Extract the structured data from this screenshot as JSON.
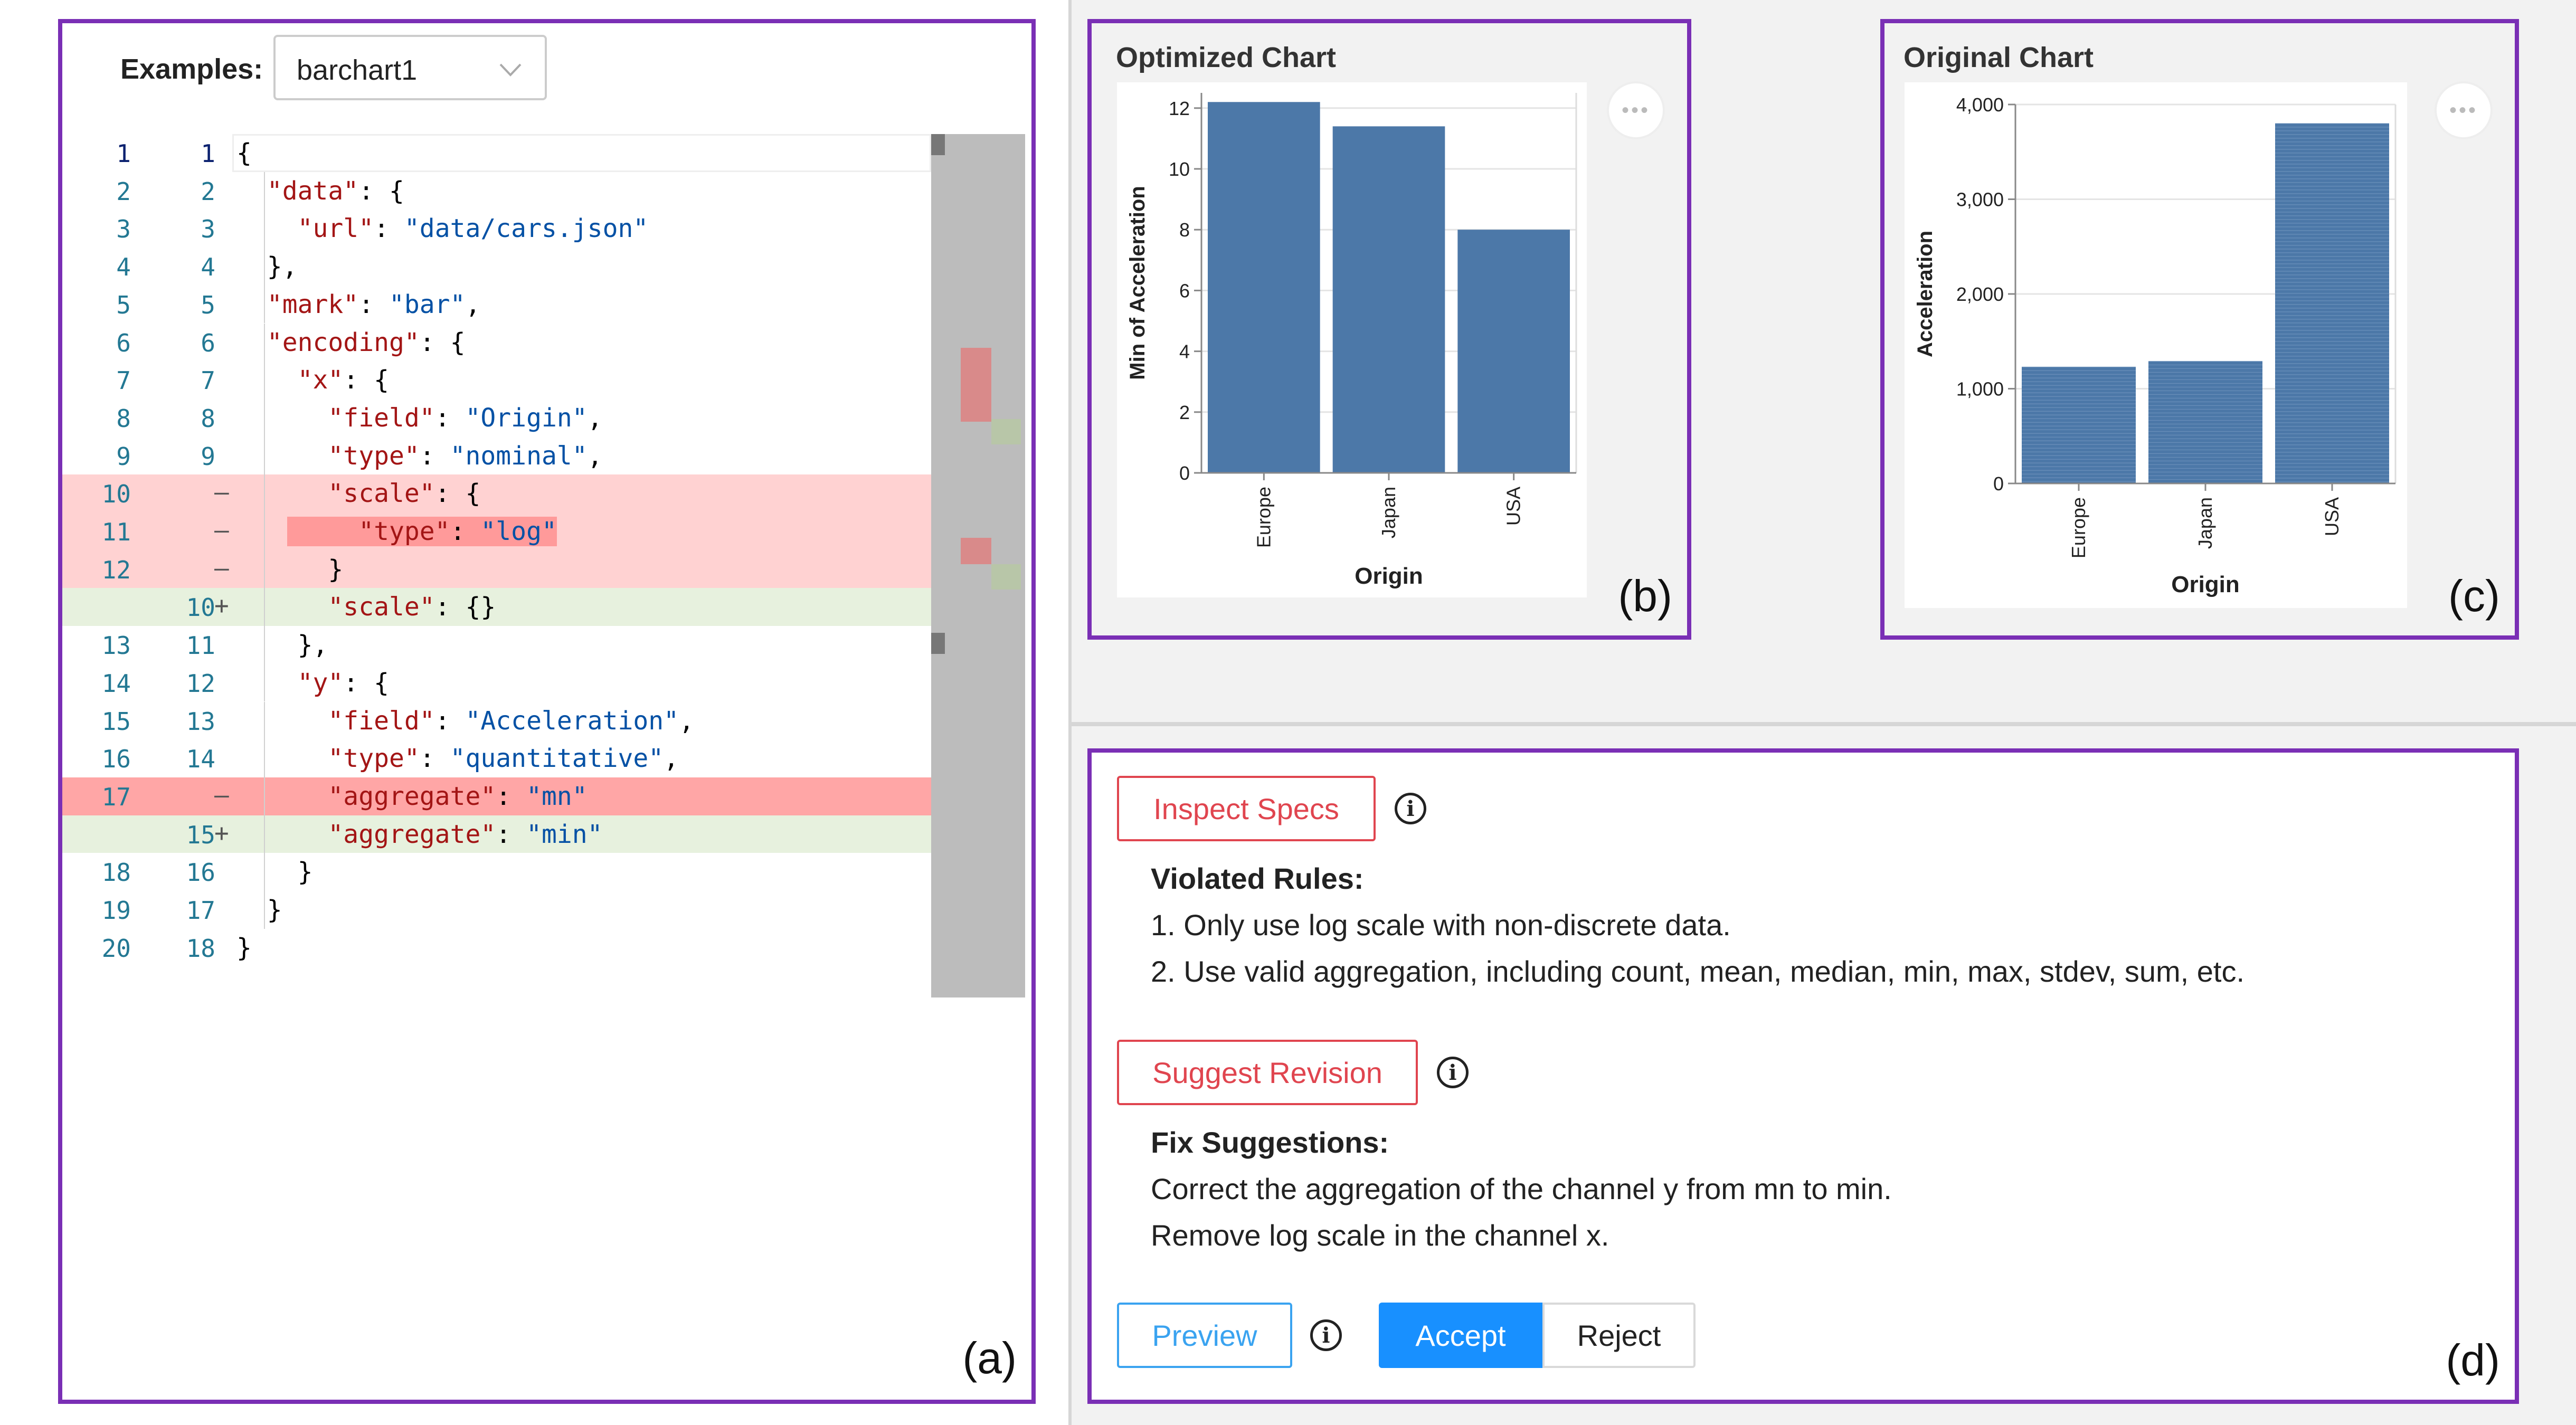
{
  "editor": {
    "examples_label": "Examples:",
    "examples_value": "barchart1",
    "panel_tag": "(a)",
    "lines": [
      {
        "l": "1",
        "r": "1",
        "diff": "",
        "tokens": [
          {
            "c": "punct",
            "t": "{"
          }
        ]
      },
      {
        "l": "2",
        "r": "2",
        "diff": "",
        "tokens": [
          {
            "c": "key",
            "t": "  \"data\""
          },
          {
            "c": "punct",
            "t": ": {"
          }
        ]
      },
      {
        "l": "3",
        "r": "3",
        "diff": "",
        "tokens": [
          {
            "c": "key",
            "t": "    \"url\""
          },
          {
            "c": "punct",
            "t": ": "
          },
          {
            "c": "str",
            "t": "\"data/cars.json\""
          }
        ]
      },
      {
        "l": "4",
        "r": "4",
        "diff": "",
        "tokens": [
          {
            "c": "punct",
            "t": "  },"
          }
        ]
      },
      {
        "l": "5",
        "r": "5",
        "diff": "",
        "tokens": [
          {
            "c": "key",
            "t": "  \"mark\""
          },
          {
            "c": "punct",
            "t": ": "
          },
          {
            "c": "str",
            "t": "\"bar\""
          },
          {
            "c": "punct",
            "t": ","
          }
        ]
      },
      {
        "l": "6",
        "r": "6",
        "diff": "",
        "tokens": [
          {
            "c": "key",
            "t": "  \"encoding\""
          },
          {
            "c": "punct",
            "t": ": {"
          }
        ]
      },
      {
        "l": "7",
        "r": "7",
        "diff": "",
        "tokens": [
          {
            "c": "key",
            "t": "    \"x\""
          },
          {
            "c": "punct",
            "t": ": {"
          }
        ]
      },
      {
        "l": "8",
        "r": "8",
        "diff": "",
        "tokens": [
          {
            "c": "key",
            "t": "      \"field\""
          },
          {
            "c": "punct",
            "t": ": "
          },
          {
            "c": "str",
            "t": "\"Origin\""
          },
          {
            "c": "punct",
            "t": ","
          }
        ]
      },
      {
        "l": "9",
        "r": "9",
        "diff": "",
        "tokens": [
          {
            "c": "key",
            "t": "      \"type\""
          },
          {
            "c": "punct",
            "t": ": "
          },
          {
            "c": "str",
            "t": "\"nominal\""
          },
          {
            "c": "punct",
            "t": ","
          }
        ]
      },
      {
        "l": "10",
        "r": "",
        "diff": "del",
        "tokens": [
          {
            "c": "key",
            "t": "      \"scale\""
          },
          {
            "c": "punct",
            "t": ": {"
          }
        ]
      },
      {
        "l": "11",
        "r": "",
        "diff": "del",
        "tokens": [
          {
            "c": "key",
            "t": "        \"type\""
          },
          {
            "c": "punct",
            "t": ": "
          },
          {
            "c": "str",
            "t": "\"log\""
          }
        ]
      },
      {
        "l": "12",
        "r": "",
        "diff": "del",
        "tokens": [
          {
            "c": "punct",
            "t": "      }"
          }
        ]
      },
      {
        "l": "",
        "r": "10",
        "diff": "add",
        "tokens": [
          {
            "c": "key",
            "t": "      \"scale\""
          },
          {
            "c": "punct",
            "t": ": {}"
          }
        ]
      },
      {
        "l": "13",
        "r": "11",
        "diff": "",
        "tokens": [
          {
            "c": "punct",
            "t": "    },"
          }
        ]
      },
      {
        "l": "14",
        "r": "12",
        "diff": "",
        "tokens": [
          {
            "c": "key",
            "t": "    \"y\""
          },
          {
            "c": "punct",
            "t": ": {"
          }
        ]
      },
      {
        "l": "15",
        "r": "13",
        "diff": "",
        "tokens": [
          {
            "c": "key",
            "t": "      \"field\""
          },
          {
            "c": "punct",
            "t": ": "
          },
          {
            "c": "str",
            "t": "\"Acceleration\""
          },
          {
            "c": "punct",
            "t": ","
          }
        ]
      },
      {
        "l": "16",
        "r": "14",
        "diff": "",
        "tokens": [
          {
            "c": "key",
            "t": "      \"type\""
          },
          {
            "c": "punct",
            "t": ": "
          },
          {
            "c": "str",
            "t": "\"quantitative\""
          },
          {
            "c": "punct",
            "t": ","
          }
        ]
      },
      {
        "l": "17",
        "r": "",
        "diff": "del2",
        "tokens": [
          {
            "c": "key",
            "t": "      \"aggregate\""
          },
          {
            "c": "punct",
            "t": ": "
          },
          {
            "c": "str",
            "t": "\"mn\""
          }
        ]
      },
      {
        "l": "",
        "r": "15",
        "diff": "add",
        "tokens": [
          {
            "c": "key",
            "t": "      \"aggregate\""
          },
          {
            "c": "punct",
            "t": ": "
          },
          {
            "c": "str",
            "t": "\"min\""
          }
        ]
      },
      {
        "l": "18",
        "r": "16",
        "diff": "",
        "tokens": [
          {
            "c": "punct",
            "t": "    }"
          }
        ]
      },
      {
        "l": "19",
        "r": "17",
        "diff": "",
        "tokens": [
          {
            "c": "punct",
            "t": "  }"
          }
        ]
      },
      {
        "l": "20",
        "r": "18",
        "diff": "",
        "tokens": [
          {
            "c": "punct",
            "t": "}"
          }
        ]
      }
    ],
    "del_marker": "—",
    "add_marker": "+"
  },
  "optimized": {
    "title": "Optimized Chart",
    "panel_tag": "(b)",
    "more_label": "•••"
  },
  "original": {
    "title": "Original Chart",
    "panel_tag": "(c)",
    "more_label": "•••"
  },
  "chart_data": [
    {
      "type": "bar",
      "title": "Optimized Chart",
      "categories": [
        "Europe",
        "Japan",
        "USA"
      ],
      "values": [
        12.2,
        11.4,
        8.0
      ],
      "xlabel": "Origin",
      "ylabel": "Min of Acceleration",
      "ylim": [
        0,
        12.5
      ],
      "yticks": [
        "0",
        "2",
        "4",
        "6",
        "8",
        "10",
        "12"
      ],
      "ytick_values": [
        0,
        2,
        4,
        6,
        8,
        10,
        12
      ],
      "color": "#4c78a8"
    },
    {
      "type": "bar",
      "title": "Original Chart",
      "categories": [
        "Europe",
        "Japan",
        "USA"
      ],
      "values": [
        1230,
        1290,
        3800
      ],
      "xlabel": "Origin",
      "ylabel": "Acceleration",
      "ylim": [
        0,
        4000
      ],
      "yticks": [
        "0",
        "1,000",
        "2,000",
        "3,000",
        "4,000"
      ],
      "ytick_values": [
        0,
        1000,
        2000,
        3000,
        4000
      ],
      "color": "#4c78a8"
    }
  ],
  "assistant": {
    "panel_tag": "(d)",
    "inspect_label": "Inspect Specs",
    "violated_title": "Violated Rules:",
    "rules": [
      "1. Only use log scale with non-discrete data.",
      "2. Use valid aggregation, including count, mean, median, min, max, stdev, sum, etc."
    ],
    "suggest_label": "Suggest Revision",
    "fix_title": "Fix Suggestions:",
    "fixes": [
      "Correct the aggregation of the channel y from mn to min.",
      "Remove log scale in the channel x."
    ],
    "preview_label": "Preview",
    "accept_label": "Accept",
    "reject_label": "Reject",
    "info_glyph": "i"
  },
  "colors": {
    "frame": "#7a2fb5",
    "del_bg": "#ffd2d2",
    "del2_bg": "#ffa6a6",
    "add_bg": "#e7f1de",
    "bar": "#4c78a8"
  }
}
